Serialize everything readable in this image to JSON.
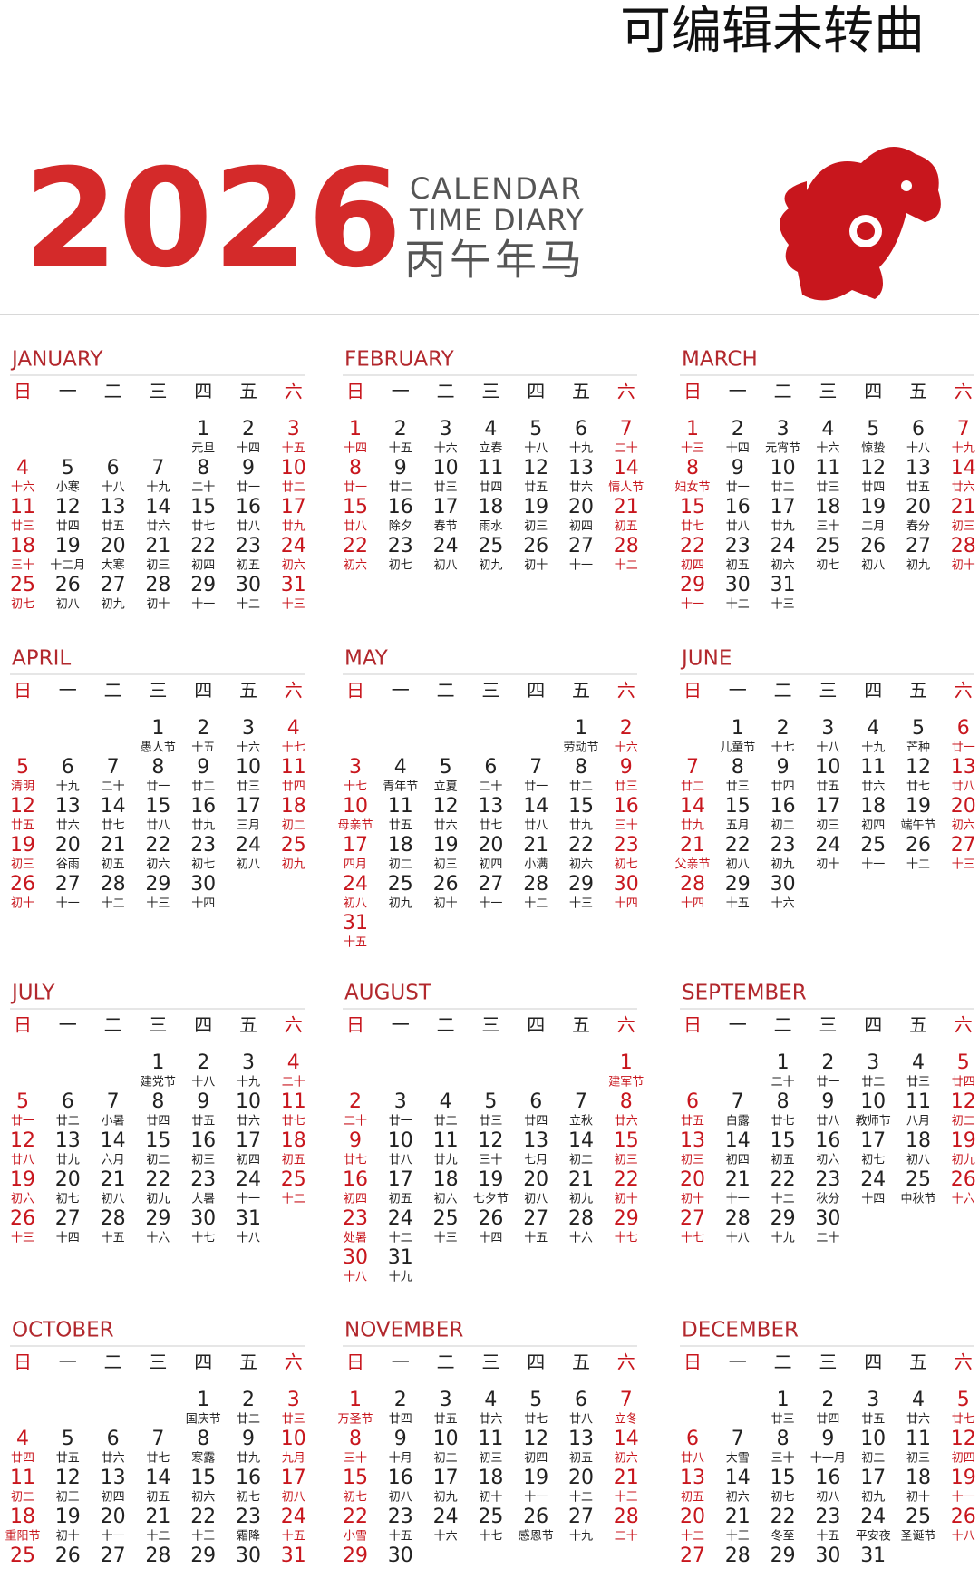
{
  "header": {
    "note": "可编辑未转曲",
    "year": "2026",
    "line1": "CALENDAR",
    "line2": "TIME DIARY",
    "zodiac": "丙午年马"
  },
  "weekdays": [
    "日",
    "一",
    "二",
    "三",
    "四",
    "五",
    "六"
  ],
  "months": [
    {
      "name": "JANUARY",
      "days": [
        [
          "1",
          "元旦"
        ],
        [
          "2",
          "十四"
        ],
        [
          "3",
          "十五"
        ],
        [
          "4",
          "十六"
        ],
        [
          "5",
          "小寒"
        ],
        [
          "6",
          "十八"
        ],
        [
          "7",
          "十九"
        ],
        [
          "8",
          "二十"
        ],
        [
          "9",
          "廿一"
        ],
        [
          "10",
          "廿二"
        ],
        [
          "11",
          "廿三"
        ],
        [
          "12",
          "廿四"
        ],
        [
          "13",
          "廿五"
        ],
        [
          "14",
          "廿六"
        ],
        [
          "15",
          "廿七"
        ],
        [
          "16",
          "廿八"
        ],
        [
          "17",
          "廿九"
        ],
        [
          "18",
          "三十"
        ],
        [
          "19",
          "十二月"
        ],
        [
          "20",
          "大寒"
        ],
        [
          "21",
          "初三"
        ],
        [
          "22",
          "初四"
        ],
        [
          "23",
          "初五"
        ],
        [
          "24",
          "初六"
        ],
        [
          "25",
          "初七"
        ],
        [
          "26",
          "初八"
        ],
        [
          "27",
          "初九"
        ],
        [
          "28",
          "初十"
        ],
        [
          "29",
          "十一"
        ],
        [
          "30",
          "十二"
        ],
        [
          "31",
          "十三"
        ]
      ]
    },
    {
      "name": "FEBRUARY",
      "days": [
        [
          "1",
          "十四"
        ],
        [
          "2",
          "十五"
        ],
        [
          "3",
          "十六"
        ],
        [
          "4",
          "立春"
        ],
        [
          "5",
          "十八"
        ],
        [
          "6",
          "十九"
        ],
        [
          "7",
          "二十"
        ],
        [
          "8",
          "廿一"
        ],
        [
          "9",
          "廿二"
        ],
        [
          "10",
          "廿三"
        ],
        [
          "11",
          "廿四"
        ],
        [
          "12",
          "廿五"
        ],
        [
          "13",
          "廿六"
        ],
        [
          "14",
          "情人节"
        ],
        [
          "15",
          "廿八"
        ],
        [
          "16",
          "除夕"
        ],
        [
          "17",
          "春节"
        ],
        [
          "18",
          "雨水"
        ],
        [
          "19",
          "初三"
        ],
        [
          "20",
          "初四"
        ],
        [
          "21",
          "初五"
        ],
        [
          "22",
          "初六"
        ],
        [
          "23",
          "初七"
        ],
        [
          "24",
          "初八"
        ],
        [
          "25",
          "初九"
        ],
        [
          "26",
          "初十"
        ],
        [
          "27",
          "十一"
        ],
        [
          "28",
          "十二"
        ]
      ]
    },
    {
      "name": "MARCH",
      "days": [
        [
          "1",
          "十三"
        ],
        [
          "2",
          "十四"
        ],
        [
          "3",
          "元宵节"
        ],
        [
          "4",
          "十六"
        ],
        [
          "5",
          "惊蛰"
        ],
        [
          "6",
          "十八"
        ],
        [
          "7",
          "十九"
        ],
        [
          "8",
          "妇女节"
        ],
        [
          "9",
          "廿一"
        ],
        [
          "10",
          "廿二"
        ],
        [
          "11",
          "廿三"
        ],
        [
          "12",
          "廿四"
        ],
        [
          "13",
          "廿五"
        ],
        [
          "14",
          "廿六"
        ],
        [
          "15",
          "廿七"
        ],
        [
          "16",
          "廿八"
        ],
        [
          "17",
          "廿九"
        ],
        [
          "18",
          "三十"
        ],
        [
          "19",
          "二月"
        ],
        [
          "20",
          "春分"
        ],
        [
          "21",
          "初三"
        ],
        [
          "22",
          "初四"
        ],
        [
          "23",
          "初五"
        ],
        [
          "24",
          "初六"
        ],
        [
          "25",
          "初七"
        ],
        [
          "26",
          "初八"
        ],
        [
          "27",
          "初九"
        ],
        [
          "28",
          "初十"
        ],
        [
          "29",
          "十一"
        ],
        [
          "30",
          "十二"
        ],
        [
          "31",
          "十三"
        ]
      ]
    },
    {
      "name": "APRIL",
      "days": [
        [
          "1",
          "愚人节"
        ],
        [
          "2",
          "十五"
        ],
        [
          "3",
          "十六"
        ],
        [
          "4",
          "十七"
        ],
        [
          "5",
          "清明"
        ],
        [
          "6",
          "十九"
        ],
        [
          "7",
          "二十"
        ],
        [
          "8",
          "廿一"
        ],
        [
          "9",
          "廿二"
        ],
        [
          "10",
          "廿三"
        ],
        [
          "11",
          "廿四"
        ],
        [
          "12",
          "廿五"
        ],
        [
          "13",
          "廿六"
        ],
        [
          "14",
          "廿七"
        ],
        [
          "15",
          "廿八"
        ],
        [
          "16",
          "廿九"
        ],
        [
          "17",
          "三月"
        ],
        [
          "18",
          "初二"
        ],
        [
          "19",
          "初三"
        ],
        [
          "20",
          "谷雨"
        ],
        [
          "21",
          "初五"
        ],
        [
          "22",
          "初六"
        ],
        [
          "23",
          "初七"
        ],
        [
          "24",
          "初八"
        ],
        [
          "25",
          "初九"
        ],
        [
          "26",
          "初十"
        ],
        [
          "27",
          "十一"
        ],
        [
          "28",
          "十二"
        ],
        [
          "29",
          "十三"
        ],
        [
          "30",
          "十四"
        ]
      ]
    },
    {
      "name": "MAY",
      "days": [
        [
          "1",
          "劳动节"
        ],
        [
          "2",
          "十六"
        ],
        [
          "3",
          "十七"
        ],
        [
          "4",
          "青年节"
        ],
        [
          "5",
          "立夏"
        ],
        [
          "6",
          "二十"
        ],
        [
          "7",
          "廿一"
        ],
        [
          "8",
          "廿二"
        ],
        [
          "9",
          "廿三"
        ],
        [
          "10",
          "母亲节"
        ],
        [
          "11",
          "廿五"
        ],
        [
          "12",
          "廿六"
        ],
        [
          "13",
          "廿七"
        ],
        [
          "14",
          "廿八"
        ],
        [
          "15",
          "廿九"
        ],
        [
          "16",
          "三十"
        ],
        [
          "17",
          "四月"
        ],
        [
          "18",
          "初二"
        ],
        [
          "19",
          "初三"
        ],
        [
          "20",
          "初四"
        ],
        [
          "21",
          "小满"
        ],
        [
          "22",
          "初六"
        ],
        [
          "23",
          "初七"
        ],
        [
          "24",
          "初八"
        ],
        [
          "25",
          "初九"
        ],
        [
          "26",
          "初十"
        ],
        [
          "27",
          "十一"
        ],
        [
          "28",
          "十二"
        ],
        [
          "29",
          "十三"
        ],
        [
          "30",
          "十四"
        ],
        [
          "31",
          "十五"
        ]
      ]
    },
    {
      "name": "JUNE",
      "days": [
        [
          "1",
          "儿童节"
        ],
        [
          "2",
          "十七"
        ],
        [
          "3",
          "十八"
        ],
        [
          "4",
          "十九"
        ],
        [
          "5",
          "芒种"
        ],
        [
          "6",
          "廿一"
        ],
        [
          "7",
          "廿二"
        ],
        [
          "8",
          "廿三"
        ],
        [
          "9",
          "廿四"
        ],
        [
          "10",
          "廿五"
        ],
        [
          "11",
          "廿六"
        ],
        [
          "12",
          "廿七"
        ],
        [
          "13",
          "廿八"
        ],
        [
          "14",
          "廿九"
        ],
        [
          "15",
          "五月"
        ],
        [
          "16",
          "初二"
        ],
        [
          "17",
          "初三"
        ],
        [
          "18",
          "初四"
        ],
        [
          "19",
          "端午节"
        ],
        [
          "20",
          "初六"
        ],
        [
          "21",
          "父亲节"
        ],
        [
          "22",
          "初八"
        ],
        [
          "23",
          "初九"
        ],
        [
          "24",
          "初十"
        ],
        [
          "25",
          "十一"
        ],
        [
          "26",
          "十二"
        ],
        [
          "27",
          "十三"
        ],
        [
          "28",
          "十四"
        ],
        [
          "29",
          "十五"
        ],
        [
          "30",
          "十六"
        ]
      ]
    },
    {
      "name": "JULY",
      "days": [
        [
          "1",
          "建党节"
        ],
        [
          "2",
          "十八"
        ],
        [
          "3",
          "十九"
        ],
        [
          "4",
          "二十"
        ],
        [
          "5",
          "廿一"
        ],
        [
          "6",
          "廿二"
        ],
        [
          "7",
          "小暑"
        ],
        [
          "8",
          "廿四"
        ],
        [
          "9",
          "廿五"
        ],
        [
          "10",
          "廿六"
        ],
        [
          "11",
          "廿七"
        ],
        [
          "12",
          "廿八"
        ],
        [
          "13",
          "廿九"
        ],
        [
          "14",
          "六月"
        ],
        [
          "15",
          "初二"
        ],
        [
          "16",
          "初三"
        ],
        [
          "17",
          "初四"
        ],
        [
          "18",
          "初五"
        ],
        [
          "19",
          "初六"
        ],
        [
          "20",
          "初七"
        ],
        [
          "21",
          "初八"
        ],
        [
          "22",
          "初九"
        ],
        [
          "23",
          "大暑"
        ],
        [
          "24",
          "十一"
        ],
        [
          "25",
          "十二"
        ],
        [
          "26",
          "十三"
        ],
        [
          "27",
          "十四"
        ],
        [
          "28",
          "十五"
        ],
        [
          "29",
          "十六"
        ],
        [
          "30",
          "十七"
        ],
        [
          "31",
          "十八"
        ]
      ]
    },
    {
      "name": "AUGUST",
      "days": [
        [
          "1",
          "建军节"
        ],
        [
          "2",
          "二十"
        ],
        [
          "3",
          "廿一"
        ],
        [
          "4",
          "廿二"
        ],
        [
          "5",
          "廿三"
        ],
        [
          "6",
          "廿四"
        ],
        [
          "7",
          "立秋"
        ],
        [
          "8",
          "廿六"
        ],
        [
          "9",
          "廿七"
        ],
        [
          "10",
          "廿八"
        ],
        [
          "11",
          "廿九"
        ],
        [
          "12",
          "三十"
        ],
        [
          "13",
          "七月"
        ],
        [
          "14",
          "初二"
        ],
        [
          "15",
          "初三"
        ],
        [
          "16",
          "初四"
        ],
        [
          "17",
          "初五"
        ],
        [
          "18",
          "初六"
        ],
        [
          "19",
          "七夕节"
        ],
        [
          "20",
          "初八"
        ],
        [
          "21",
          "初九"
        ],
        [
          "22",
          "初十"
        ],
        [
          "23",
          "处暑"
        ],
        [
          "24",
          "十二"
        ],
        [
          "25",
          "十三"
        ],
        [
          "26",
          "十四"
        ],
        [
          "27",
          "十五"
        ],
        [
          "28",
          "十六"
        ],
        [
          "29",
          "十七"
        ],
        [
          "30",
          "十八"
        ],
        [
          "31",
          "十九"
        ]
      ]
    },
    {
      "name": "SEPTEMBER",
      "days": [
        [
          "1",
          "二十"
        ],
        [
          "2",
          "廿一"
        ],
        [
          "3",
          "廿二"
        ],
        [
          "4",
          "廿三"
        ],
        [
          "5",
          "廿四"
        ],
        [
          "6",
          "廿五"
        ],
        [
          "7",
          "白露"
        ],
        [
          "8",
          "廿七"
        ],
        [
          "9",
          "廿八"
        ],
        [
          "10",
          "教师节"
        ],
        [
          "11",
          "八月"
        ],
        [
          "12",
          "初二"
        ],
        [
          "13",
          "初三"
        ],
        [
          "14",
          "初四"
        ],
        [
          "15",
          "初五"
        ],
        [
          "16",
          "初六"
        ],
        [
          "17",
          "初七"
        ],
        [
          "18",
          "初八"
        ],
        [
          "19",
          "初九"
        ],
        [
          "20",
          "初十"
        ],
        [
          "21",
          "十一"
        ],
        [
          "22",
          "十二"
        ],
        [
          "23",
          "秋分"
        ],
        [
          "24",
          "十四"
        ],
        [
          "25",
          "中秋节"
        ],
        [
          "26",
          "十六"
        ],
        [
          "27",
          "十七"
        ],
        [
          "28",
          "十八"
        ],
        [
          "29",
          "十九"
        ],
        [
          "30",
          "二十"
        ]
      ]
    },
    {
      "name": "OCTOBER",
      "days": [
        [
          "1",
          "国庆节"
        ],
        [
          "2",
          "廿二"
        ],
        [
          "3",
          "廿三"
        ],
        [
          "4",
          "廿四"
        ],
        [
          "5",
          "廿五"
        ],
        [
          "6",
          "廿六"
        ],
        [
          "7",
          "廿七"
        ],
        [
          "8",
          "寒露"
        ],
        [
          "9",
          "廿九"
        ],
        [
          "10",
          "九月"
        ],
        [
          "11",
          "初二"
        ],
        [
          "12",
          "初三"
        ],
        [
          "13",
          "初四"
        ],
        [
          "14",
          "初五"
        ],
        [
          "15",
          "初六"
        ],
        [
          "16",
          "初七"
        ],
        [
          "17",
          "初八"
        ],
        [
          "18",
          "重阳节"
        ],
        [
          "19",
          "初十"
        ],
        [
          "20",
          "十一"
        ],
        [
          "21",
          "十二"
        ],
        [
          "22",
          "十三"
        ],
        [
          "23",
          "霜降"
        ],
        [
          "24",
          "十五"
        ],
        [
          "25"
        ],
        [
          "26"
        ],
        [
          "27"
        ],
        [
          "28"
        ],
        [
          "29"
        ],
        [
          "30"
        ],
        [
          "31"
        ]
      ]
    },
    {
      "name": "NOVEMBER",
      "days": [
        [
          "1",
          "万圣节"
        ],
        [
          "2",
          "廿四"
        ],
        [
          "3",
          "廿五"
        ],
        [
          "4",
          "廿六"
        ],
        [
          "5",
          "廿七"
        ],
        [
          "6",
          "廿八"
        ],
        [
          "7",
          "立冬"
        ],
        [
          "8",
          "三十"
        ],
        [
          "9",
          "十月"
        ],
        [
          "10",
          "初二"
        ],
        [
          "11",
          "初三"
        ],
        [
          "12",
          "初四"
        ],
        [
          "13",
          "初五"
        ],
        [
          "14",
          "初六"
        ],
        [
          "15",
          "初七"
        ],
        [
          "16",
          "初八"
        ],
        [
          "17",
          "初九"
        ],
        [
          "18",
          "初十"
        ],
        [
          "19",
          "十一"
        ],
        [
          "20",
          "十二"
        ],
        [
          "21",
          "十三"
        ],
        [
          "22",
          "小雪"
        ],
        [
          "23",
          "十五"
        ],
        [
          "24",
          "十六"
        ],
        [
          "25",
          "十七"
        ],
        [
          "26",
          "感恩节"
        ],
        [
          "27",
          "十九"
        ],
        [
          "28",
          "二十"
        ],
        [
          "29"
        ],
        [
          "30"
        ]
      ]
    },
    {
      "name": "DECEMBER",
      "days": [
        [
          "1",
          "廿三"
        ],
        [
          "2",
          "廿四"
        ],
        [
          "3",
          "廿五"
        ],
        [
          "4",
          "廿六"
        ],
        [
          "5",
          "廿七"
        ],
        [
          "6",
          "廿八"
        ],
        [
          "7",
          "大雪"
        ],
        [
          "8",
          "三十"
        ],
        [
          "9",
          "十一月"
        ],
        [
          "10",
          "初二"
        ],
        [
          "11",
          "初三"
        ],
        [
          "12",
          "初四"
        ],
        [
          "13",
          "初五"
        ],
        [
          "14",
          "初六"
        ],
        [
          "15",
          "初七"
        ],
        [
          "16",
          "初八"
        ],
        [
          "17",
          "初九"
        ],
        [
          "18",
          "初十"
        ],
        [
          "19",
          "十一"
        ],
        [
          "20",
          "十二"
        ],
        [
          "21",
          "十三"
        ],
        [
          "22",
          "冬至"
        ],
        [
          "23",
          "十五"
        ],
        [
          "24",
          "平安夜"
        ],
        [
          "25",
          "圣诞节"
        ],
        [
          "26",
          "十八"
        ],
        [
          "27"
        ],
        [
          "28"
        ],
        [
          "29"
        ],
        [
          "30"
        ],
        [
          "31"
        ]
      ]
    }
  ]
}
